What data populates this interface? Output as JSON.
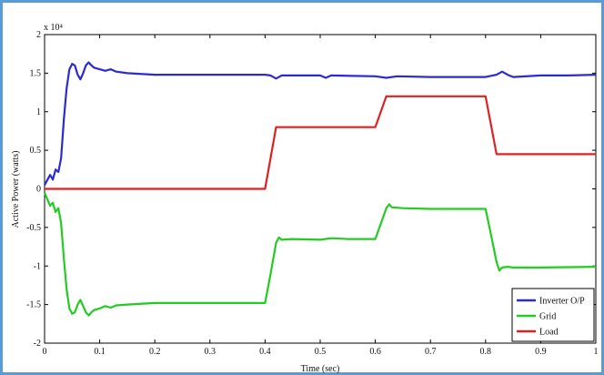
{
  "chart_data": {
    "type": "line",
    "title": "",
    "xlabel": "Time (sec)",
    "ylabel": "Active Power (watts)",
    "y_multiplier_label": "x 10⁴",
    "xlim": [
      0,
      1
    ],
    "ylim": [
      -2,
      2
    ],
    "x_ticks": [
      "0",
      "0.1",
      "0.2",
      "0.3",
      "0.4",
      "0.5",
      "0.6",
      "0.7",
      "0.8",
      "0.9",
      "1"
    ],
    "x_tick_values": [
      0,
      0.1,
      0.2,
      0.3,
      0.4,
      0.5,
      0.6,
      0.7,
      0.8,
      0.9,
      1
    ],
    "y_ticks": [
      "2",
      "1.5",
      "1",
      "0.5",
      "0",
      "-0.5",
      "-1",
      "-1.5",
      "-2"
    ],
    "y_tick_values": [
      2,
      1.5,
      1,
      0.5,
      0,
      -0.5,
      -1,
      -1.5,
      -2
    ],
    "grid": false,
    "legend_position": "bottom-right",
    "series": [
      {
        "name": "Inverter O/P",
        "color": "#2b2bd0",
        "points": [
          [
            0,
            0.05
          ],
          [
            0.01,
            0.18
          ],
          [
            0.015,
            0.12
          ],
          [
            0.02,
            0.25
          ],
          [
            0.025,
            0.22
          ],
          [
            0.03,
            0.4
          ],
          [
            0.035,
            0.9
          ],
          [
            0.04,
            1.3
          ],
          [
            0.045,
            1.55
          ],
          [
            0.05,
            1.62
          ],
          [
            0.055,
            1.6
          ],
          [
            0.06,
            1.48
          ],
          [
            0.065,
            1.42
          ],
          [
            0.07,
            1.5
          ],
          [
            0.075,
            1.6
          ],
          [
            0.08,
            1.64
          ],
          [
            0.085,
            1.6
          ],
          [
            0.09,
            1.57
          ],
          [
            0.1,
            1.55
          ],
          [
            0.11,
            1.53
          ],
          [
            0.12,
            1.55
          ],
          [
            0.13,
            1.52
          ],
          [
            0.15,
            1.5
          ],
          [
            0.2,
            1.48
          ],
          [
            0.3,
            1.48
          ],
          [
            0.4,
            1.48
          ],
          [
            0.41,
            1.47
          ],
          [
            0.42,
            1.43
          ],
          [
            0.43,
            1.47
          ],
          [
            0.45,
            1.47
          ],
          [
            0.5,
            1.47
          ],
          [
            0.51,
            1.44
          ],
          [
            0.52,
            1.47
          ],
          [
            0.6,
            1.46
          ],
          [
            0.62,
            1.44
          ],
          [
            0.64,
            1.46
          ],
          [
            0.7,
            1.45
          ],
          [
            0.8,
            1.45
          ],
          [
            0.82,
            1.48
          ],
          [
            0.83,
            1.52
          ],
          [
            0.84,
            1.48
          ],
          [
            0.85,
            1.45
          ],
          [
            0.9,
            1.47
          ],
          [
            0.95,
            1.47
          ],
          [
            1.0,
            1.48
          ]
        ]
      },
      {
        "name": "Grid",
        "color": "#22cc22",
        "points": [
          [
            0,
            -0.05
          ],
          [
            0.01,
            -0.22
          ],
          [
            0.015,
            -0.18
          ],
          [
            0.02,
            -0.3
          ],
          [
            0.025,
            -0.25
          ],
          [
            0.03,
            -0.45
          ],
          [
            0.035,
            -0.9
          ],
          [
            0.04,
            -1.3
          ],
          [
            0.045,
            -1.55
          ],
          [
            0.05,
            -1.62
          ],
          [
            0.055,
            -1.6
          ],
          [
            0.06,
            -1.5
          ],
          [
            0.065,
            -1.44
          ],
          [
            0.07,
            -1.52
          ],
          [
            0.075,
            -1.6
          ],
          [
            0.08,
            -1.64
          ],
          [
            0.085,
            -1.6
          ],
          [
            0.09,
            -1.57
          ],
          [
            0.1,
            -1.55
          ],
          [
            0.11,
            -1.52
          ],
          [
            0.12,
            -1.54
          ],
          [
            0.13,
            -1.51
          ],
          [
            0.15,
            -1.5
          ],
          [
            0.2,
            -1.48
          ],
          [
            0.3,
            -1.48
          ],
          [
            0.4,
            -1.48
          ],
          [
            0.41,
            -1.1
          ],
          [
            0.42,
            -0.7
          ],
          [
            0.425,
            -0.63
          ],
          [
            0.43,
            -0.66
          ],
          [
            0.45,
            -0.65
          ],
          [
            0.5,
            -0.66
          ],
          [
            0.52,
            -0.64
          ],
          [
            0.55,
            -0.65
          ],
          [
            0.6,
            -0.65
          ],
          [
            0.61,
            -0.45
          ],
          [
            0.62,
            -0.25
          ],
          [
            0.625,
            -0.2
          ],
          [
            0.63,
            -0.24
          ],
          [
            0.65,
            -0.25
          ],
          [
            0.7,
            -0.26
          ],
          [
            0.8,
            -0.26
          ],
          [
            0.81,
            -0.6
          ],
          [
            0.82,
            -0.95
          ],
          [
            0.825,
            -1.06
          ],
          [
            0.83,
            -1.02
          ],
          [
            0.84,
            -1.01
          ],
          [
            0.85,
            -1.02
          ],
          [
            0.9,
            -1.02
          ],
          [
            1.0,
            -1.01
          ]
        ]
      },
      {
        "name": "Load",
        "color": "#dd2222",
        "points": [
          [
            0,
            0
          ],
          [
            0.4,
            0
          ],
          [
            0.42,
            0.8
          ],
          [
            0.6,
            0.8
          ],
          [
            0.62,
            1.2
          ],
          [
            0.8,
            1.2
          ],
          [
            0.82,
            0.45
          ],
          [
            1.0,
            0.45
          ]
        ]
      }
    ]
  }
}
